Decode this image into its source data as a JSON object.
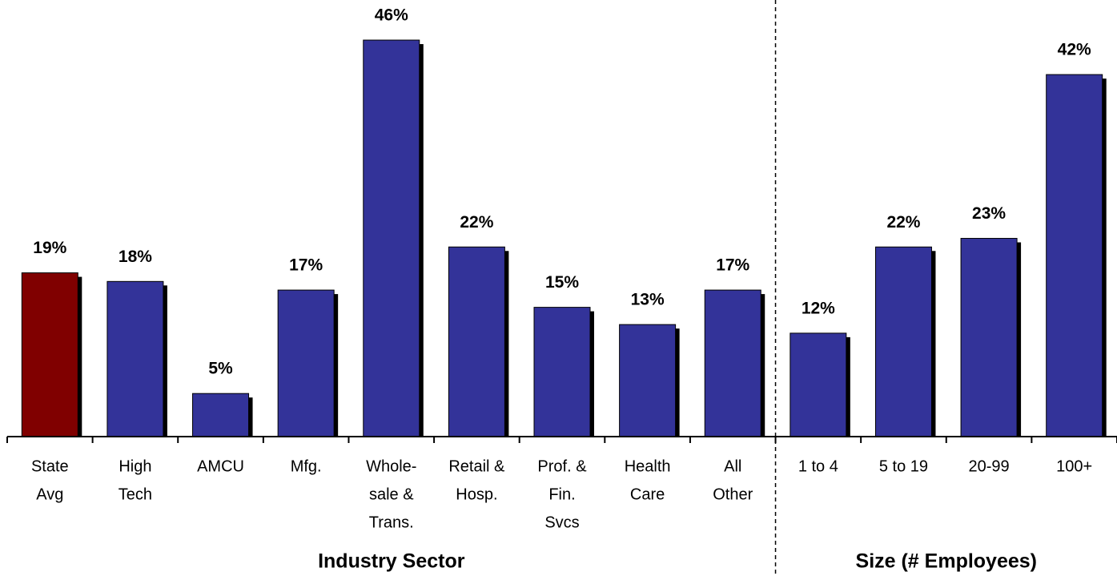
{
  "chart_data": {
    "type": "bar",
    "categories": [
      [
        "State",
        "Avg"
      ],
      [
        "High",
        "Tech"
      ],
      [
        "AMCU"
      ],
      [
        "Mfg."
      ],
      [
        "Whole-",
        "sale &",
        "Trans."
      ],
      [
        "Retail &",
        "Hosp."
      ],
      [
        "Prof. &",
        "Fin.",
        "Svcs"
      ],
      [
        "Health",
        "Care"
      ],
      [
        "All",
        "Other"
      ],
      [
        "1 to 4"
      ],
      [
        "5 to 19"
      ],
      [
        "20-99"
      ],
      [
        "100+"
      ]
    ],
    "values": [
      19,
      18,
      5,
      17,
      46,
      22,
      15,
      13,
      17,
      12,
      22,
      23,
      42
    ],
    "value_labels": [
      "19%",
      "18%",
      "5%",
      "17%",
      "46%",
      "22%",
      "15%",
      "13%",
      "17%",
      "12%",
      "22%",
      "23%",
      "42%"
    ],
    "colors": [
      "#800000",
      "#333399",
      "#333399",
      "#333399",
      "#333399",
      "#333399",
      "#333399",
      "#333399",
      "#333399",
      "#333399",
      "#333399",
      "#333399",
      "#333399"
    ],
    "groups": [
      "Industry Sector",
      "Size (# Employees)"
    ],
    "ylim": [
      0,
      50
    ]
  }
}
